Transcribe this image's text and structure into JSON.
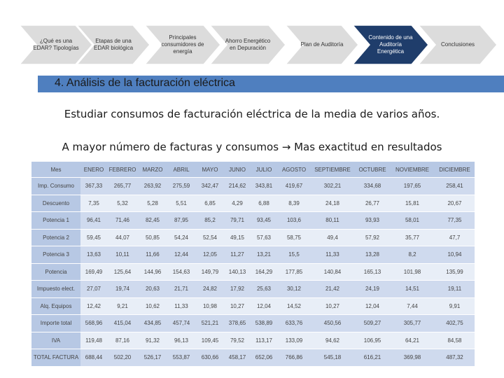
{
  "nav": {
    "steps": [
      {
        "label": "¿Qué es una EDAR? Tipologías"
      },
      {
        "label": "Etapas de una EDAR biológica"
      },
      {
        "label": "Principales consumidores de energía"
      },
      {
        "label": "Ahorro Energético en Depuración"
      },
      {
        "label": "Plan de Auditoría"
      },
      {
        "label": "Contenido de una Auditoría Energética"
      },
      {
        "label": "Conclusiones"
      }
    ],
    "active_index": 5,
    "colors": {
      "inactive": "#dcdcdc",
      "active": "#1f3d6b",
      "outline": "#ffffff"
    }
  },
  "section_title": "4. Análisis de la facturación eléctrica",
  "text_line1": "Estudiar consumos de facturación eléctrica de la media de varios años.",
  "text_line2": "A mayor número de facturas y consumos → Mas exactitud en resultados",
  "table": {
    "headers": [
      "Mes",
      "ENERO",
      "FEBRERO",
      "MARZO",
      "ABRIL",
      "MAYO",
      "JUNIO",
      "JULIO",
      "AGOSTO",
      "SEPTIEMBRE",
      "OCTUBRE",
      "NOVIEMBRE",
      "DICIEMBRE"
    ],
    "rows": [
      [
        "Imp. Consumo",
        "367,33",
        "265,77",
        "263,92",
        "275,59",
        "342,47",
        "214,62",
        "343,81",
        "419,67",
        "302,21",
        "334,68",
        "197,65",
        "258,41"
      ],
      [
        "Descuento",
        "7,35",
        "5,32",
        "5,28",
        "5,51",
        "6,85",
        "4,29",
        "6,88",
        "8,39",
        "24,18",
        "26,77",
        "15,81",
        "20,67"
      ],
      [
        "Potencia 1",
        "96,41",
        "71,46",
        "82,45",
        "87,95",
        "85,2",
        "79,71",
        "93,45",
        "103,6",
        "80,11",
        "93,93",
        "58,01",
        "77,35"
      ],
      [
        "Potencia 2",
        "59,45",
        "44,07",
        "50,85",
        "54,24",
        "52,54",
        "49,15",
        "57,63",
        "58,75",
        "49,4",
        "57,92",
        "35,77",
        "47,7"
      ],
      [
        "Potencia 3",
        "13,63",
        "10,11",
        "11,66",
        "12,44",
        "12,05",
        "11,27",
        "13,21",
        "15,5",
        "11,33",
        "13,28",
        "8,2",
        "10,94"
      ],
      [
        "Potencia",
        "169,49",
        "125,64",
        "144,96",
        "154,63",
        "149,79",
        "140,13",
        "164,29",
        "177,85",
        "140,84",
        "165,13",
        "101,98",
        "135,99"
      ],
      [
        "Impuesto elect.",
        "27,07",
        "19,74",
        "20,63",
        "21,71",
        "24,82",
        "17,92",
        "25,63",
        "30,12",
        "21,42",
        "24,19",
        "14,51",
        "19,11"
      ],
      [
        "Alq. Equipos",
        "12,42",
        "9,21",
        "10,62",
        "11,33",
        "10,98",
        "10,27",
        "12,04",
        "14,52",
        "10,27",
        "12,04",
        "7,44",
        "9,91"
      ],
      [
        "Importe total",
        "568,96",
        "415,04",
        "434,85",
        "457,74",
        "521,21",
        "378,65",
        "538,89",
        "633,76",
        "450,56",
        "509,27",
        "305,77",
        "402,75"
      ],
      [
        "IVA",
        "119,48",
        "87,16",
        "91,32",
        "96,13",
        "109,45",
        "79,52",
        "113,17",
        "133,09",
        "94,62",
        "106,95",
        "64,21",
        "84,58"
      ],
      [
        "TOTAL FACTURA",
        "688,44",
        "502,20",
        "526,17",
        "553,87",
        "630,66",
        "458,17",
        "652,06",
        "766,86",
        "545,18",
        "616,21",
        "369,98",
        "487,32"
      ]
    ],
    "colors": {
      "header": "#b7c8e4",
      "band_odd": "#cfdaee",
      "band_even": "#e8eef7"
    }
  },
  "banner_color": "#4f7fbf"
}
